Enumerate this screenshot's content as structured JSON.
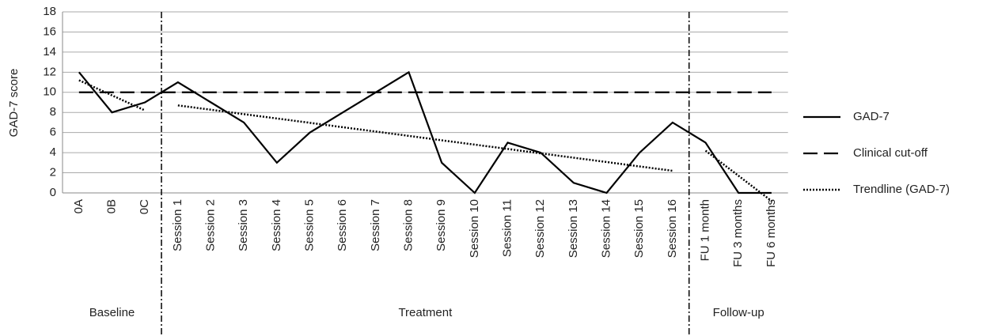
{
  "chart_data": {
    "type": "line",
    "y_label": "GAD-7 score",
    "groups": [
      {
        "label": "Baseline",
        "categories": [
          "0A",
          "0B",
          "0C"
        ]
      },
      {
        "label": "Treatment",
        "categories": [
          "Session 1",
          "Session 2",
          "Session 3",
          "Session 4",
          "Session 5",
          "Session 6",
          "Session 7",
          "Session 8",
          "Session 9",
          "Session 10",
          "Session 11",
          "Session 12",
          "Session 13",
          "Session 14",
          "Session 15",
          "Session 16"
        ]
      },
      {
        "label": "Follow-up",
        "categories": [
          "FU 1 month",
          "FU 3 months",
          "FU 6 months"
        ]
      }
    ],
    "series": [
      {
        "name": "GAD-7",
        "color": "#000000",
        "dash": "solid",
        "values": [
          12,
          8,
          9,
          11,
          9,
          7,
          3,
          6,
          8,
          10,
          12,
          3,
          0,
          5,
          4,
          1,
          0,
          4,
          7,
          5,
          0,
          0
        ]
      },
      {
        "name": "Clinical cut-off",
        "color": "#000000",
        "dash": "dashed",
        "values": [
          10,
          10,
          10,
          10,
          10,
          10,
          10,
          10,
          10,
          10,
          10,
          10,
          10,
          10,
          10,
          10,
          10,
          10,
          10,
          10,
          10,
          10
        ]
      },
      {
        "name": "Trendline (GAD-7)",
        "color": "#000000",
        "dash": "dotted",
        "per_group": true,
        "values": [
          11.2,
          9.7,
          8.2,
          8.7,
          8.27,
          7.83,
          7.4,
          6.97,
          6.53,
          6.1,
          5.67,
          5.23,
          4.8,
          4.37,
          3.93,
          3.5,
          3.07,
          2.63,
          2.2,
          4.2,
          1.7,
          -0.8
        ]
      }
    ],
    "ylim": [
      0,
      18
    ],
    "yticks": [
      0,
      2,
      4,
      6,
      8,
      10,
      12,
      14,
      16,
      18
    ],
    "grid": true,
    "legend": "right"
  }
}
